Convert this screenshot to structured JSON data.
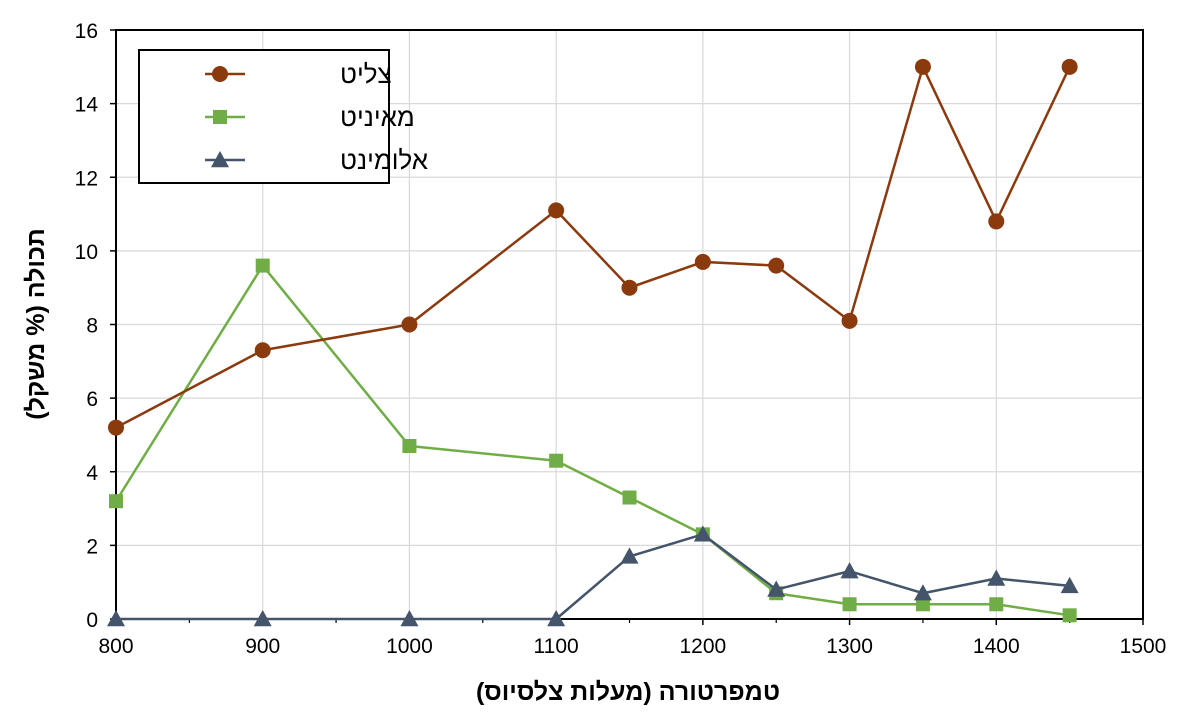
{
  "chart_data": {
    "type": "line",
    "xlabel": "טמפרטורה (מעלות צלסיוס)",
    "ylabel": "תכולה (% משקל)",
    "xlim": [
      800,
      1500
    ],
    "ylim": [
      0,
      16
    ],
    "xticks": [
      800,
      900,
      1000,
      1100,
      1200,
      1300,
      1400,
      1500
    ],
    "yticks": [
      0,
      2,
      4,
      6,
      8,
      10,
      12,
      14,
      16
    ],
    "grid": true,
    "legend_position": "top-left",
    "series": [
      {
        "name": "צליט",
        "color": "#8B3A0E",
        "marker": "circle",
        "x": [
          800,
          900,
          1000,
          1100,
          1150,
          1200,
          1250,
          1300,
          1350,
          1400,
          1450
        ],
        "y": [
          5.2,
          7.3,
          8.0,
          11.1,
          9.0,
          9.7,
          9.6,
          8.1,
          15.0,
          10.8,
          15.0
        ]
      },
      {
        "name": "מאיניט",
        "color": "#70AD47",
        "marker": "square",
        "x": [
          800,
          900,
          1000,
          1100,
          1150,
          1200,
          1250,
          1300,
          1350,
          1400,
          1450
        ],
        "y": [
          3.2,
          9.6,
          4.7,
          4.3,
          3.3,
          2.3,
          0.7,
          0.4,
          0.4,
          0.4,
          0.1
        ]
      },
      {
        "name": "אלומינט",
        "color": "#44546A",
        "marker": "triangle",
        "x": [
          800,
          900,
          1000,
          1100,
          1150,
          1200,
          1250,
          1300,
          1350,
          1400,
          1450
        ],
        "y": [
          0,
          0,
          0,
          0,
          1.7,
          2.3,
          0.8,
          1.3,
          0.7,
          1.1,
          0.9
        ]
      }
    ]
  }
}
